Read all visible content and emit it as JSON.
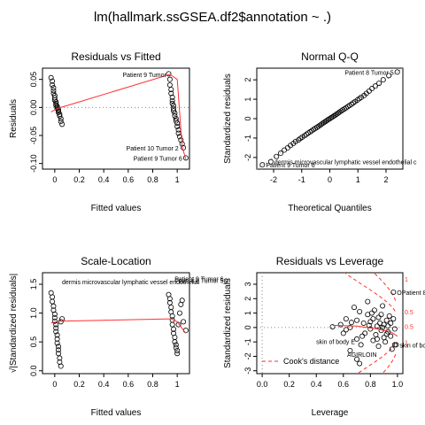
{
  "figure_title": "lm(hallmark.ssGSEA.df2$annotation ~ .)",
  "chart_data": [
    {
      "type": "scatter",
      "panel": "top-left",
      "title": "Residuals vs Fitted",
      "xlabel": "Fitted values",
      "ylabel": "Residuals",
      "xlim": [
        -0.1,
        1.1
      ],
      "ylim": [
        -0.11,
        0.07
      ],
      "xticks": [
        0.0,
        0.2,
        0.4,
        0.6,
        0.8,
        1.0
      ],
      "yticks": [
        -0.1,
        -0.05,
        0.0,
        0.05
      ],
      "ytick_labels": [
        "-0.10",
        "-0.05",
        "0.00",
        "0.05"
      ],
      "reference_line": 0,
      "grid": false,
      "series": [
        {
          "values": [
            [
              -0.03,
              0.053
            ],
            [
              -0.02,
              0.047
            ],
            [
              -0.02,
              0.04
            ],
            [
              -0.01,
              0.035
            ],
            [
              -0.01,
              0.03
            ],
            [
              -0.01,
              0.025
            ],
            [
              0.0,
              0.021
            ],
            [
              0.0,
              0.017
            ],
            [
              0.0,
              0.013
            ],
            [
              0.01,
              0.01
            ],
            [
              0.01,
              0.007
            ],
            [
              0.01,
              0.004
            ],
            [
              0.02,
              0.002
            ],
            [
              0.02,
              0.0
            ],
            [
              0.02,
              -0.002
            ],
            [
              0.03,
              -0.004
            ],
            [
              0.03,
              -0.006
            ],
            [
              0.03,
              -0.009
            ],
            [
              0.04,
              -0.012
            ],
            [
              0.04,
              -0.015
            ],
            [
              0.05,
              -0.02
            ],
            [
              0.05,
              -0.025
            ],
            [
              0.06,
              -0.03
            ],
            [
              0.93,
              0.06
            ],
            [
              0.94,
              0.05
            ],
            [
              0.94,
              0.04
            ],
            [
              0.95,
              0.032
            ],
            [
              0.95,
              0.025
            ],
            [
              0.96,
              0.018
            ],
            [
              0.96,
              0.012
            ],
            [
              0.96,
              0.007
            ],
            [
              0.97,
              0.003
            ],
            [
              0.97,
              -0.002
            ],
            [
              0.97,
              -0.006
            ],
            [
              0.98,
              -0.01
            ],
            [
              0.98,
              -0.015
            ],
            [
              0.99,
              -0.02
            ],
            [
              0.99,
              -0.024
            ],
            [
              1.0,
              -0.028
            ],
            [
              1.0,
              -0.034
            ],
            [
              1.01,
              -0.04
            ],
            [
              1.01,
              -0.046
            ],
            [
              1.02,
              -0.052
            ],
            [
              1.03,
              -0.058
            ],
            [
              1.04,
              -0.065
            ],
            [
              1.05,
              -0.072
            ],
            [
              1.07,
              -0.09
            ]
          ]
        }
      ],
      "smooth_line": [
        [
          -0.03,
          -0.008
        ],
        [
          0.02,
          -0.002
        ],
        [
          0.94,
          0.059
        ],
        [
          1.0,
          0.05
        ],
        [
          1.04,
          -0.07
        ],
        [
          1.07,
          -0.092
        ]
      ],
      "annotations": [
        {
          "text": "Patient 9 Tumor",
          "x": 0.94,
          "y": 0.059
        },
        {
          "text": "Patient 10 Tumor 2",
          "x": 1.04,
          "y": -0.072
        },
        {
          "text": "Patient 9 Tumor 6",
          "x": 1.07,
          "y": -0.09
        }
      ]
    },
    {
      "type": "scatter",
      "panel": "top-right",
      "title": "Normal Q-Q",
      "xlabel": "Theoretical Quantiles",
      "ylabel": "Standardized residuals",
      "xlim": [
        -2.6,
        2.6
      ],
      "ylim": [
        -2.6,
        2.6
      ],
      "xticks": [
        -2,
        -1,
        0,
        1,
        2
      ],
      "yticks": [
        -2,
        -1,
        0,
        1,
        2
      ],
      "reference_line": "diagonal",
      "grid": false,
      "series": [
        {
          "values": [
            [
              -2.4,
              -2.38
            ],
            [
              -2.1,
              -2.22
            ],
            [
              -1.9,
              -1.95
            ],
            [
              -1.75,
              -1.78
            ],
            [
              -1.62,
              -1.62
            ],
            [
              -1.5,
              -1.5
            ],
            [
              -1.4,
              -1.38
            ],
            [
              -1.3,
              -1.28
            ],
            [
              -1.22,
              -1.18
            ],
            [
              -1.12,
              -1.1
            ],
            [
              -1.05,
              -1.02
            ],
            [
              -0.98,
              -0.95
            ],
            [
              -0.9,
              -0.88
            ],
            [
              -0.83,
              -0.81
            ],
            [
              -0.77,
              -0.74
            ],
            [
              -0.7,
              -0.68
            ],
            [
              -0.64,
              -0.62
            ],
            [
              -0.58,
              -0.56
            ],
            [
              -0.52,
              -0.5
            ],
            [
              -0.46,
              -0.45
            ],
            [
              -0.41,
              -0.4
            ],
            [
              -0.35,
              -0.34
            ],
            [
              -0.3,
              -0.29
            ],
            [
              -0.25,
              -0.24
            ],
            [
              -0.2,
              -0.19
            ],
            [
              -0.15,
              -0.14
            ],
            [
              -0.1,
              -0.09
            ],
            [
              -0.05,
              -0.04
            ],
            [
              0.0,
              0.0
            ],
            [
              0.05,
              0.05
            ],
            [
              0.1,
              0.09
            ],
            [
              0.15,
              0.14
            ],
            [
              0.2,
              0.19
            ],
            [
              0.25,
              0.24
            ],
            [
              0.3,
              0.29
            ],
            [
              0.35,
              0.34
            ],
            [
              0.41,
              0.4
            ],
            [
              0.46,
              0.45
            ],
            [
              0.52,
              0.5
            ],
            [
              0.58,
              0.56
            ],
            [
              0.64,
              0.62
            ],
            [
              0.7,
              0.68
            ],
            [
              0.77,
              0.74
            ],
            [
              0.83,
              0.81
            ],
            [
              0.9,
              0.88
            ],
            [
              0.98,
              0.96
            ],
            [
              1.05,
              1.03
            ],
            [
              1.12,
              1.1
            ],
            [
              1.22,
              1.19
            ],
            [
              1.3,
              1.3
            ],
            [
              1.4,
              1.42
            ],
            [
              1.5,
              1.55
            ],
            [
              1.62,
              1.68
            ],
            [
              1.75,
              1.82
            ],
            [
              1.9,
              2.0
            ],
            [
              2.1,
              2.22
            ],
            [
              2.4,
              2.4
            ]
          ]
        }
      ],
      "annotations": [
        {
          "text": "Patient 8 Tumor 5",
          "x": 2.4,
          "y": 2.4
        },
        {
          "text": "dermis microvascular lymphatic vessel endothelial c",
          "x": -2.1,
          "y": -2.22
        },
        {
          "text": "Patient 9 Tumor 6",
          "x": -2.4,
          "y": -2.38
        }
      ]
    },
    {
      "type": "scatter",
      "panel": "bottom-left",
      "title": "Scale-Location",
      "xlabel": "Fitted values",
      "ylabel": "√|Standardized residuals|",
      "xlim": [
        -0.1,
        1.1
      ],
      "ylim": [
        -0.05,
        1.7
      ],
      "xticks": [
        0.0,
        0.2,
        0.4,
        0.6,
        0.8,
        1.0
      ],
      "yticks": [
        0.0,
        0.5,
        1.0,
        1.5
      ],
      "ytick_labels": [
        "0.0",
        "0.5",
        "1.0",
        "1.5"
      ],
      "grid": false,
      "series": [
        {
          "values": [
            [
              -0.03,
              1.35
            ],
            [
              -0.02,
              1.28
            ],
            [
              -0.02,
              1.2
            ],
            [
              -0.01,
              1.12
            ],
            [
              -0.01,
              1.05
            ],
            [
              0.0,
              0.98
            ],
            [
              0.0,
              0.92
            ],
            [
              0.0,
              0.86
            ],
            [
              0.01,
              0.8
            ],
            [
              0.01,
              0.74
            ],
            [
              0.01,
              0.68
            ],
            [
              0.02,
              0.62
            ],
            [
              0.02,
              0.55
            ],
            [
              0.02,
              0.48
            ],
            [
              0.03,
              0.42
            ],
            [
              0.03,
              0.36
            ],
            [
              0.03,
              0.3
            ],
            [
              0.04,
              0.22
            ],
            [
              0.04,
              0.15
            ],
            [
              0.05,
              0.08
            ],
            [
              0.05,
              0.85
            ],
            [
              0.06,
              0.9
            ],
            [
              0.93,
              1.32
            ],
            [
              0.94,
              1.25
            ],
            [
              0.94,
              1.18
            ],
            [
              0.95,
              1.1
            ],
            [
              0.95,
              1.02
            ],
            [
              0.96,
              0.95
            ],
            [
              0.96,
              0.88
            ],
            [
              0.96,
              0.8
            ],
            [
              0.97,
              0.72
            ],
            [
              0.97,
              0.65
            ],
            [
              0.98,
              0.58
            ],
            [
              0.98,
              0.5
            ],
            [
              0.99,
              0.45
            ],
            [
              0.99,
              0.4
            ],
            [
              1.0,
              0.35
            ],
            [
              1.0,
              0.3
            ],
            [
              1.01,
              0.8
            ],
            [
              1.02,
              1.0
            ],
            [
              1.03,
              1.15
            ],
            [
              1.04,
              1.22
            ],
            [
              1.05,
              0.85
            ],
            [
              1.07,
              0.7
            ]
          ]
        }
      ],
      "smooth_line": [
        [
          -0.03,
          0.83
        ],
        [
          0.04,
          0.86
        ],
        [
          0.95,
          0.9
        ],
        [
          1.0,
          0.85
        ],
        [
          1.07,
          0.65
        ]
      ],
      "annotations": [
        {
          "text": "dermis microvascular lymphatic vessel endothelial",
          "x": 0.03,
          "y": 1.55
        },
        {
          "text": "Patient 9 Tumor 6",
          "x": 0.95,
          "y": 1.6
        },
        {
          "text": "Patient 8 Tumor 5O",
          "x": 0.95,
          "y": 1.57
        }
      ]
    },
    {
      "type": "scatter",
      "panel": "bottom-right",
      "title": "Residuals vs Leverage",
      "xlabel": "Leverage",
      "ylabel": "Standardized residuals",
      "xlim": [
        -0.04,
        1.04
      ],
      "ylim": [
        -3.2,
        3.8
      ],
      "xticks": [
        0.0,
        0.2,
        0.4,
        0.6,
        0.8,
        1.0
      ],
      "xtick_labels": [
        "0.0",
        "0.2",
        "0.4",
        "0.6",
        "0.8",
        "1.0"
      ],
      "yticks": [
        -3,
        -2,
        -1,
        0,
        1,
        2,
        3
      ],
      "reference_line": 0,
      "grid": false,
      "contour_labels": [
        "1",
        "0.5",
        "0.5",
        "1"
      ],
      "legend": {
        "entries": [
          "Cook's distance"
        ],
        "position": "bottom-left"
      },
      "series": [
        {
          "values": [
            [
              0.52,
              0.05
            ],
            [
              0.58,
              0.2
            ],
            [
              0.6,
              -0.4
            ],
            [
              0.62,
              0.6
            ],
            [
              0.65,
              0.0
            ],
            [
              0.68,
              1.4
            ],
            [
              0.7,
              -0.8
            ],
            [
              0.7,
              0.5
            ],
            [
              0.72,
              1.1
            ],
            [
              0.73,
              -1.2
            ],
            [
              0.75,
              0.3
            ],
            [
              0.76,
              -0.4
            ],
            [
              0.78,
              0.9
            ],
            [
              0.78,
              1.8
            ],
            [
              0.8,
              -0.1
            ],
            [
              0.8,
              0.4
            ],
            [
              0.82,
              -0.9
            ],
            [
              0.82,
              0.6
            ],
            [
              0.83,
              1.2
            ],
            [
              0.84,
              -0.5
            ],
            [
              0.85,
              0.1
            ],
            [
              0.86,
              0.7
            ],
            [
              0.86,
              -1.3
            ],
            [
              0.87,
              0.3
            ],
            [
              0.88,
              -0.2
            ],
            [
              0.88,
              0.9
            ],
            [
              0.89,
              1.5
            ],
            [
              0.9,
              -0.7
            ],
            [
              0.9,
              0.2
            ],
            [
              0.91,
              -1.0
            ],
            [
              0.92,
              0.5
            ],
            [
              0.93,
              -0.3
            ],
            [
              0.93,
              0.1
            ],
            [
              0.94,
              0.8
            ],
            [
              0.95,
              -0.6
            ],
            [
              0.95,
              0.3
            ],
            [
              0.96,
              -1.5
            ],
            [
              0.97,
              0.6
            ],
            [
              0.98,
              -0.1
            ],
            [
              0.98,
              -1.2
            ],
            [
              0.62,
              -0.15
            ],
            [
              0.66,
              0.35
            ],
            [
              0.74,
              -0.6
            ],
            [
              0.79,
              0.15
            ],
            [
              0.81,
              1.0
            ],
            [
              0.85,
              -0.8
            ],
            [
              0.89,
              0.0
            ],
            [
              0.92,
              -0.45
            ],
            [
              0.65,
              -1.6
            ],
            [
              0.7,
              -2.2
            ],
            [
              0.72,
              -2.5
            ],
            [
              0.97,
              2.45
            ],
            [
              0.99,
              -1.2
            ]
          ]
        }
      ],
      "smooth_line": [
        [
          0.52,
          0.15
        ],
        [
          0.7,
          0.1
        ],
        [
          0.85,
          -0.1
        ],
        [
          0.95,
          -0.3
        ],
        [
          1.0,
          -0.6
        ]
      ],
      "annotations": [
        {
          "text": "OPatient 8",
          "x": 0.97,
          "y": 2.45
        },
        {
          "text": "skin of bo",
          "x": 0.99,
          "y": -1.2
        },
        {
          "text": "skin of body E",
          "x": 0.7,
          "y": -0.95
        },
        {
          "text": "AGIRLOIN",
          "x": 0.86,
          "y": -1.85
        }
      ]
    }
  ]
}
